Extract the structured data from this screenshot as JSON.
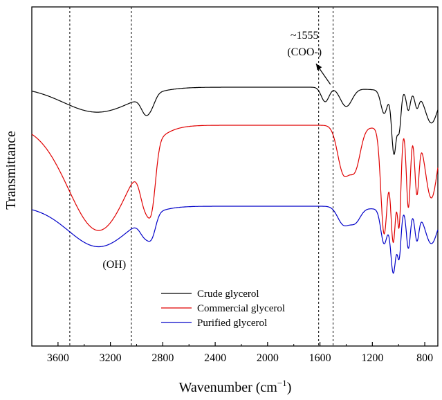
{
  "chart_data": {
    "type": "line",
    "title": "",
    "xlabel": "Wavenumber (cm",
    "xlabel_sup": "−1",
    "xlabel_close": ")",
    "ylabel": "Transmittance",
    "xlim": [
      3800,
      700
    ],
    "x_reversed": true,
    "x_ticks": [
      3600,
      3200,
      2800,
      2400,
      2000,
      1600,
      1200,
      800
    ],
    "x_tick_labels": [
      "3600",
      "3200",
      "2800",
      "2400",
      "2000",
      "1600",
      "1200",
      "800"
    ],
    "y_ticks_shown": false,
    "grid": false,
    "legend_position": "bottom-center",
    "reference_lines": [
      3510,
      3040,
      1610,
      1500
    ],
    "annotations": {
      "oh": {
        "text": "(OH)",
        "wavenumber": 3170
      },
      "coo_line1": {
        "text": "~1555",
        "wavenumber": 1560
      },
      "coo_line2": {
        "text": "(COO-)",
        "wavenumber": 1560
      },
      "arrow_from_wavenumber": 1520,
      "arrow_to_wavenumber": 1630
    },
    "series": [
      {
        "name": "Crude glycerol",
        "color": "#000000",
        "offset": 0,
        "peaks": [
          {
            "x": 3300,
            "depth": 0.38,
            "width": 260
          },
          {
            "x": 2930,
            "depth": 0.26,
            "width": 35
          },
          {
            "x": 2880,
            "depth": 0.12,
            "width": 30
          },
          {
            "x": 1560,
            "depth": 0.22,
            "width": 30
          },
          {
            "x": 1400,
            "depth": 0.28,
            "width": 45
          },
          {
            "x": 1110,
            "depth": 0.35,
            "width": 25
          },
          {
            "x": 1035,
            "depth": 0.95,
            "width": 18
          },
          {
            "x": 995,
            "depth": 0.55,
            "width": 14
          },
          {
            "x": 925,
            "depth": 0.28,
            "width": 15
          },
          {
            "x": 860,
            "depth": 0.22,
            "width": 16
          },
          {
            "x": 750,
            "depth": 0.45,
            "width": 45
          }
        ]
      },
      {
        "name": "Commercial glycerol",
        "color": "#e00000",
        "offset": 1,
        "peaks": [
          {
            "x": 3290,
            "depth": 0.95,
            "width": 230
          },
          {
            "x": 2935,
            "depth": 0.42,
            "width": 38
          },
          {
            "x": 2880,
            "depth": 0.42,
            "width": 30
          },
          {
            "x": 1420,
            "depth": 0.42,
            "width": 45
          },
          {
            "x": 1330,
            "depth": 0.35,
            "width": 40
          },
          {
            "x": 1110,
            "depth": 0.95,
            "width": 25
          },
          {
            "x": 1040,
            "depth": 1.0,
            "width": 20
          },
          {
            "x": 995,
            "depth": 0.8,
            "width": 14
          },
          {
            "x": 925,
            "depth": 0.7,
            "width": 15
          },
          {
            "x": 860,
            "depth": 0.55,
            "width": 16
          },
          {
            "x": 750,
            "depth": 0.6,
            "width": 45
          }
        ]
      },
      {
        "name": "Purified glycerol",
        "color": "#0000c8",
        "offset": 2,
        "peaks": [
          {
            "x": 3290,
            "depth": 0.65,
            "width": 230
          },
          {
            "x": 2935,
            "depth": 0.28,
            "width": 38
          },
          {
            "x": 2880,
            "depth": 0.28,
            "width": 30
          },
          {
            "x": 1420,
            "depth": 0.28,
            "width": 45
          },
          {
            "x": 1330,
            "depth": 0.22,
            "width": 40
          },
          {
            "x": 1110,
            "depth": 0.55,
            "width": 25
          },
          {
            "x": 1040,
            "depth": 1.0,
            "width": 20
          },
          {
            "x": 995,
            "depth": 0.7,
            "width": 14
          },
          {
            "x": 925,
            "depth": 0.6,
            "width": 15
          },
          {
            "x": 860,
            "depth": 0.45,
            "width": 16
          },
          {
            "x": 750,
            "depth": 0.5,
            "width": 45
          }
        ]
      }
    ]
  }
}
